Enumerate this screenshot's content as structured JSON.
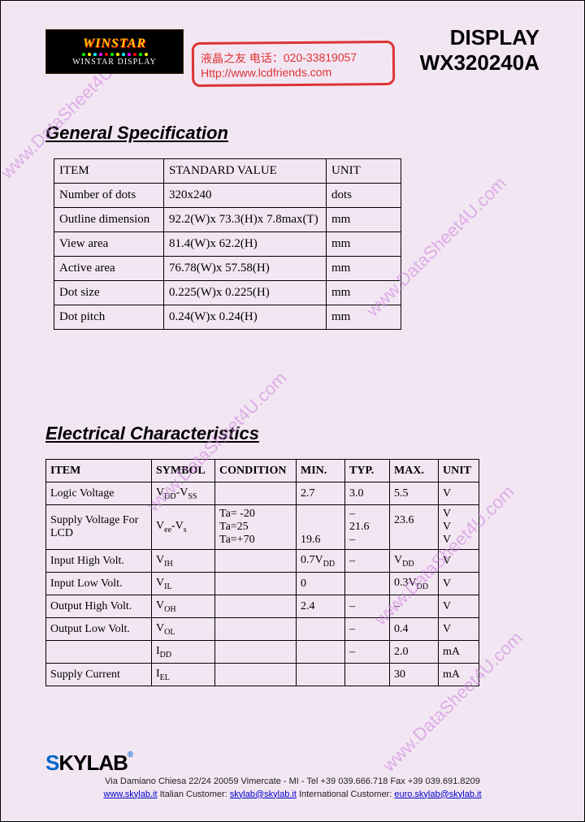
{
  "header": {
    "logo_top": "WINSTAR",
    "logo_bottom": "WINSTAR DISPLAY",
    "stamp_line1": "液晶之友 电话：020-33819057",
    "stamp_line2": "Http://www.lcdfriends.com",
    "title1": "DISPLAY",
    "title2": "WX320240A"
  },
  "general": {
    "title": "General Specification",
    "header": [
      "ITEM",
      "STANDARD VALUE",
      "UNIT"
    ],
    "rows": [
      [
        "Number of dots",
        "320x240",
        "dots"
      ],
      [
        "Outline dimension",
        "92.2(W)x 73.3(H)x 7.8max(T)",
        "mm"
      ],
      [
        "View area",
        "81.4(W)x 62.2(H)",
        "mm"
      ],
      [
        "Active area",
        "76.78(W)x 57.58(H)",
        "mm"
      ],
      [
        "Dot size",
        "0.225(W)x 0.225(H)",
        "mm"
      ],
      [
        "Dot pitch",
        "0.24(W)x 0.24(H)",
        "mm"
      ]
    ]
  },
  "electrical": {
    "title": "Electrical Characteristics",
    "header": [
      "ITEM",
      "SYMBOL",
      "CONDITION",
      "MIN.",
      "TYP.",
      "MAX.",
      "UNIT"
    ],
    "rows": [
      {
        "item": "Logic Voltage",
        "symbol": "V<sub class='sub'>DD</sub>-V<sub class='sub'>SS</sub>",
        "cond": "",
        "min": "2.7",
        "typ": "3.0",
        "max": "5.5",
        "unit": "V"
      },
      {
        "item": "Supply Voltage For LCD",
        "symbol": "V<sub class='sub'>ee</sub>-V<sub class='sub'>s</sub>",
        "cond": "Ta= -20<br>Ta=25<br>Ta=+70",
        "min": "<br><br>19.6",
        "typ": "–<br>21.6<br>–",
        "max": "23.6<br><br>",
        "unit": "V<br>V<br>V",
        "rowspan": 1
      },
      {
        "item": "Input High Volt.",
        "symbol": "V<sub class='sub'>IH</sub>",
        "cond": "",
        "min": "0.7V<sub class='sub'>DD</sub>",
        "typ": "–",
        "max": "V<sub class='sub'>DD</sub>",
        "unit": "V"
      },
      {
        "item": "Input Low Volt.",
        "symbol": "V<sub class='sub'>IL</sub>",
        "cond": "",
        "min": "0",
        "typ": "",
        "max": "0.3V<sub class='sub'>DD</sub>",
        "unit": "V"
      },
      {
        "item": "Output High Volt.",
        "symbol": "V<sub class='sub'>OH</sub>",
        "cond": "",
        "min": "2.4",
        "typ": "–",
        "max": "–",
        "unit": "V"
      },
      {
        "item": "Output Low Volt.",
        "symbol": "V<sub class='sub'>OL</sub>",
        "cond": "",
        "min": "",
        "typ": "–",
        "max": "0.4",
        "unit": "V"
      },
      {
        "item": "",
        "symbol": "I<sub class='sub'>DD</sub>",
        "cond": "",
        "min": "",
        "typ": "–",
        "max": "2.0",
        "unit": "mA"
      },
      {
        "item": "Supply Current",
        "symbol": "I<sub class='sub'>EL</sub>",
        "cond": "",
        "min": "",
        "typ": "",
        "max": "30",
        "unit": "mA"
      }
    ]
  },
  "footer": {
    "logo": "SKYLAB",
    "addr": "Via Damiano Chiesa 22/24 20059 Vimercate - MI - Tel +39 039.666.718 Fax +39 039.691.8209",
    "link1": "www.skylab.it",
    "mid1": "  Italian Customer: ",
    "email1": "skylab@skylab.it",
    "mid2": "  International Customer: ",
    "email2": "euro.skylab@skylab.it"
  },
  "watermark": "www.DataSheet4U.com",
  "colors": {
    "page_bg": "#f3e6f3",
    "stamp_red": "#dd3333",
    "watermark": "#cc88dd",
    "link": "#0000cc",
    "skylab_blue": "#0066cc"
  }
}
